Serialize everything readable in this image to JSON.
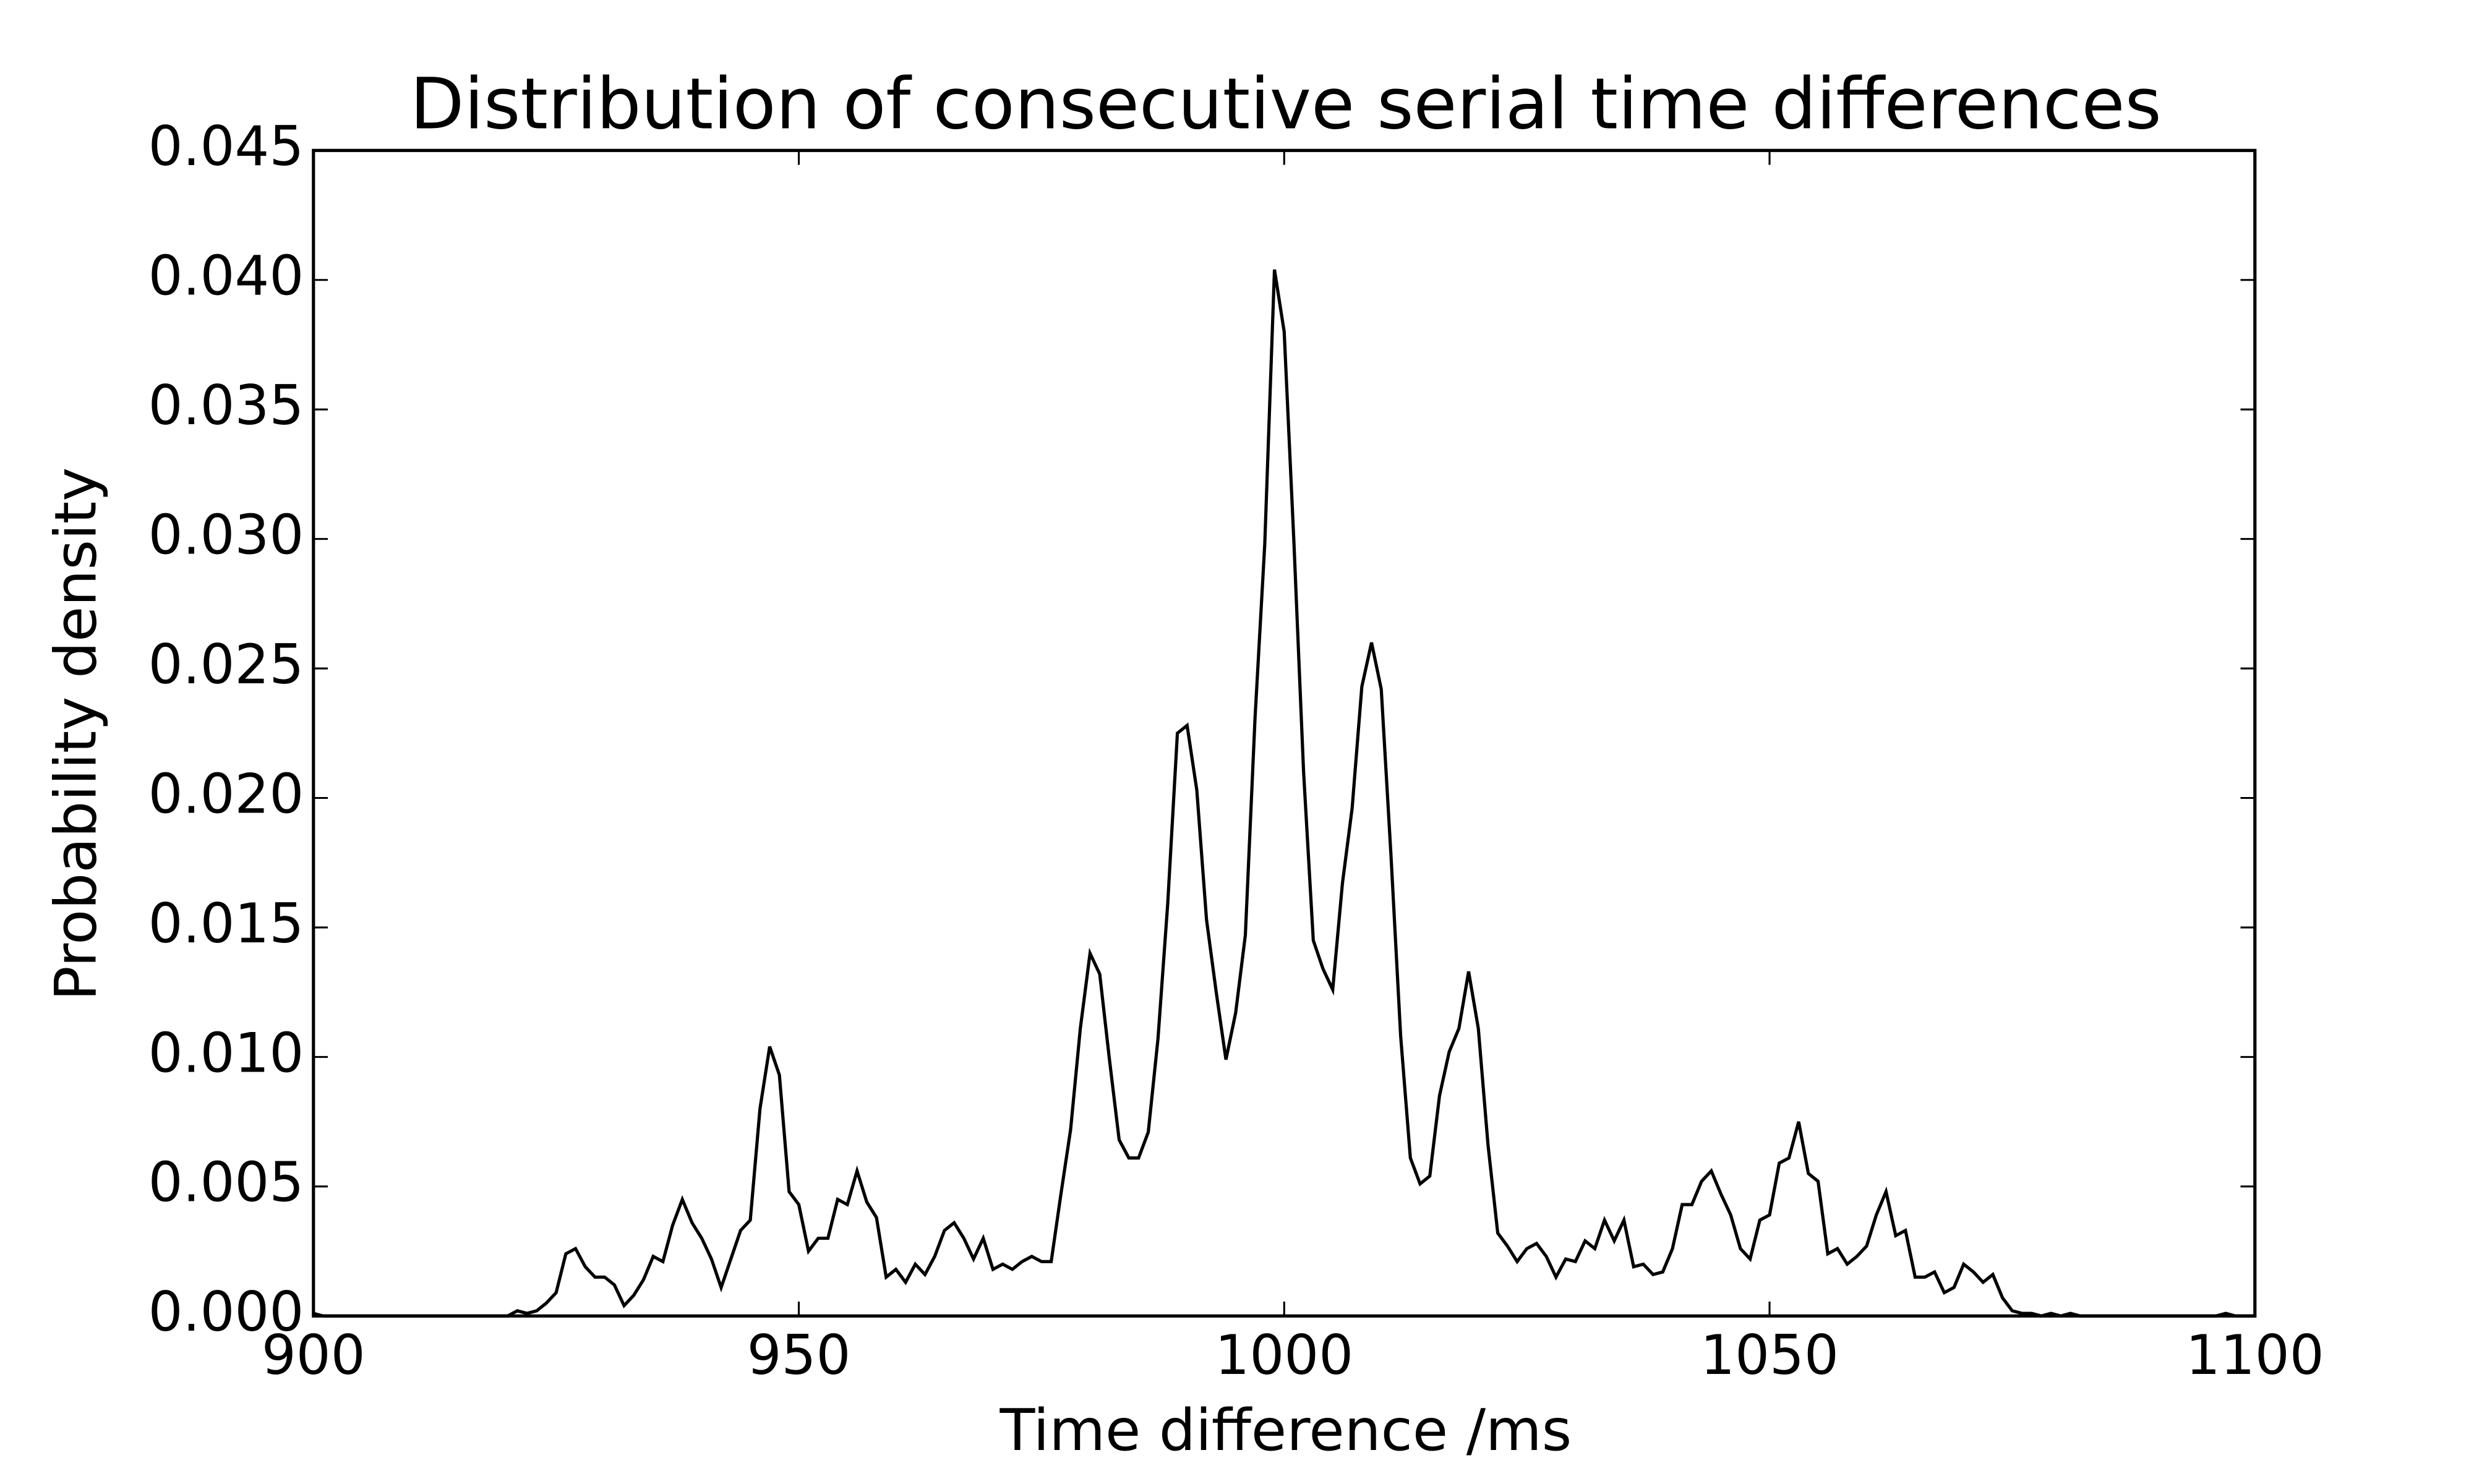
{
  "chart_data": {
    "type": "line",
    "title": "Distribution of consecutive serial time differences",
    "xlabel": "Time difference /ms",
    "ylabel": "Probability density",
    "x": [
      900,
      901,
      920,
      921,
      922,
      923,
      924,
      925,
      926,
      927,
      928,
      929,
      930,
      931,
      932,
      933,
      934,
      935,
      936,
      937,
      938,
      939,
      940,
      941,
      942,
      943,
      944,
      945,
      946,
      947,
      948,
      949,
      950,
      951,
      952,
      953,
      954,
      955,
      956,
      957,
      958,
      959,
      960,
      961,
      962,
      963,
      964,
      965,
      966,
      967,
      968,
      969,
      970,
      971,
      972,
      973,
      974,
      975,
      976,
      977,
      978,
      979,
      980,
      981,
      982,
      983,
      984,
      985,
      986,
      987,
      988,
      989,
      990,
      991,
      992,
      993,
      994,
      995,
      996,
      997,
      998,
      999,
      1000,
      1001,
      1002,
      1003,
      1004,
      1005,
      1006,
      1007,
      1008,
      1009,
      1010,
      1011,
      1012,
      1013,
      1014,
      1015,
      1016,
      1017,
      1018,
      1019,
      1020,
      1021,
      1022,
      1023,
      1024,
      1025,
      1026,
      1027,
      1028,
      1029,
      1030,
      1031,
      1032,
      1033,
      1034,
      1035,
      1036,
      1037,
      1038,
      1039,
      1040,
      1041,
      1042,
      1043,
      1044,
      1045,
      1046,
      1047,
      1048,
      1049,
      1050,
      1051,
      1052,
      1053,
      1054,
      1055,
      1056,
      1057,
      1058,
      1059,
      1060,
      1061,
      1062,
      1063,
      1064,
      1065,
      1066,
      1067,
      1068,
      1069,
      1070,
      1071,
      1072,
      1073,
      1074,
      1075,
      1076,
      1077,
      1078,
      1079,
      1080,
      1081,
      1082,
      1096,
      1097,
      1098,
      1100
    ],
    "series": [
      {
        "name": "density",
        "color": "#000000",
        "values": [
          0.0001,
          0.0,
          0.0,
          0.0002,
          0.0001,
          0.0002,
          0.0005,
          0.0009,
          0.0024,
          0.0026,
          0.0019,
          0.0015,
          0.0015,
          0.0012,
          0.0004,
          0.0008,
          0.0014,
          0.0023,
          0.0021,
          0.0035,
          0.0045,
          0.0036,
          0.003,
          0.0022,
          0.0011,
          0.0022,
          0.0033,
          0.0037,
          0.008,
          0.0104,
          0.0093,
          0.0048,
          0.0043,
          0.0025,
          0.003,
          0.003,
          0.0045,
          0.0043,
          0.0056,
          0.0044,
          0.0038,
          0.0015,
          0.0018,
          0.0013,
          0.002,
          0.0016,
          0.0023,
          0.0033,
          0.0036,
          0.003,
          0.0022,
          0.003,
          0.0018,
          0.002,
          0.0018,
          0.0021,
          0.0023,
          0.0021,
          0.0021,
          0.0047,
          0.0072,
          0.0111,
          0.014,
          0.0132,
          0.0099,
          0.0068,
          0.0061,
          0.0061,
          0.0071,
          0.0107,
          0.0159,
          0.0225,
          0.0228,
          0.0203,
          0.0153,
          0.0125,
          0.0099,
          0.0117,
          0.0147,
          0.0231,
          0.0298,
          0.0404,
          0.038,
          0.0299,
          0.021,
          0.0145,
          0.0134,
          0.0126,
          0.0167,
          0.0196,
          0.0243,
          0.026,
          0.0242,
          0.0178,
          0.0108,
          0.0061,
          0.0051,
          0.0054,
          0.0085,
          0.0102,
          0.0111,
          0.0133,
          0.0111,
          0.0066,
          0.0032,
          0.0027,
          0.0021,
          0.0026,
          0.0028,
          0.0023,
          0.0015,
          0.0022,
          0.0021,
          0.0029,
          0.0026,
          0.0037,
          0.0029,
          0.0037,
          0.0019,
          0.002,
          0.0016,
          0.0017,
          0.0026,
          0.0043,
          0.0043,
          0.0052,
          0.0056,
          0.0047,
          0.0039,
          0.0026,
          0.0022,
          0.0037,
          0.0039,
          0.0059,
          0.0061,
          0.0075,
          0.0055,
          0.0052,
          0.0024,
          0.0026,
          0.002,
          0.0023,
          0.0027,
          0.0039,
          0.0048,
          0.0031,
          0.0033,
          0.0015,
          0.0015,
          0.0017,
          0.0009,
          0.0011,
          0.002,
          0.0017,
          0.0013,
          0.0016,
          0.0007,
          0.0002,
          0.0001,
          0.0001,
          0.0,
          0.0001,
          0.0,
          0.0001,
          0.0,
          0.0,
          0.0001,
          0.0,
          0.0
        ]
      }
    ],
    "xlim": [
      900,
      1100
    ],
    "xticks": [
      900,
      950,
      1000,
      1050,
      1100
    ],
    "ylim": [
      0,
      0.045
    ],
    "yticks": [
      {
        "value": 0,
        "label": "0.000"
      },
      {
        "value": 0.005,
        "label": "0.005"
      },
      {
        "value": 0.01,
        "label": "0.010"
      },
      {
        "value": 0.015,
        "label": "0.015"
      },
      {
        "value": 0.02,
        "label": "0.020"
      },
      {
        "value": 0.025,
        "label": "0.025"
      },
      {
        "value": 0.03,
        "label": "0.030"
      },
      {
        "value": 0.035,
        "label": "0.035"
      },
      {
        "value": 0.04,
        "label": "0.040"
      },
      {
        "value": 0.045,
        "label": "0.045"
      }
    ],
    "grid": false
  }
}
